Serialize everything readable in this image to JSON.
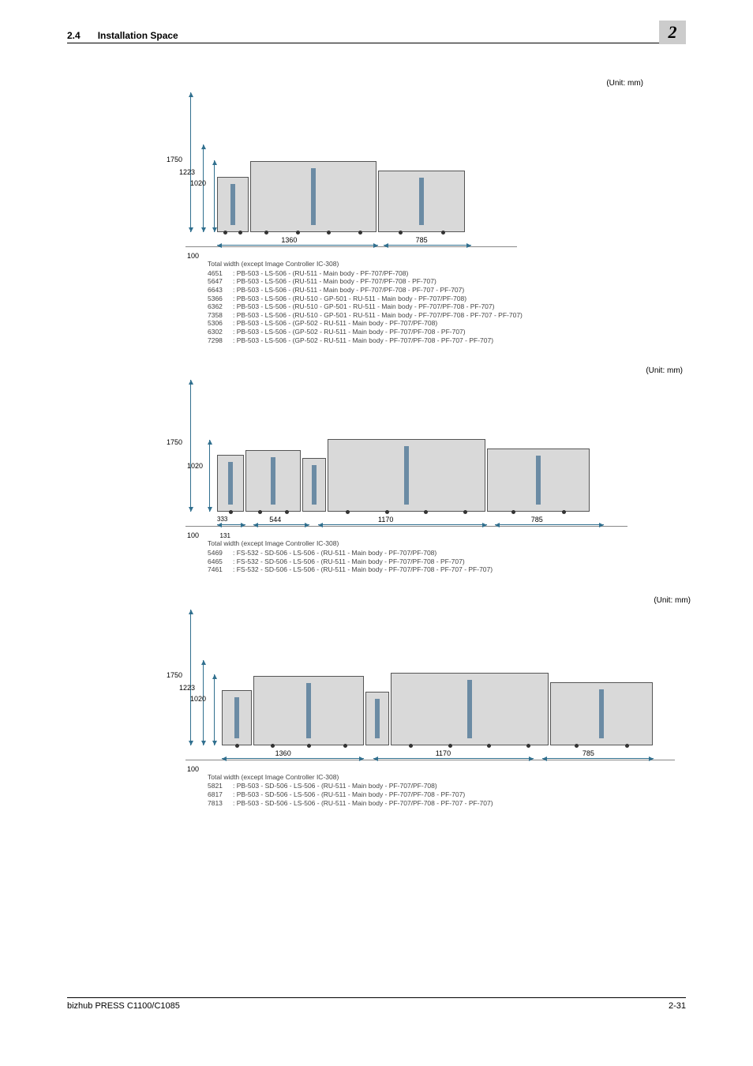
{
  "header": {
    "section_number": "2.4",
    "section_title": "Installation Space",
    "chapter": "2"
  },
  "footer": {
    "product": "bizhub PRESS C1100/C1085",
    "page": "2-31"
  },
  "common": {
    "unit_label": "(Unit: mm)",
    "caption_title": "Total width (except Image Controller IC-308)",
    "label_100": "100"
  },
  "fig1": {
    "v_labels": {
      "outer": "1750",
      "mid": "1223",
      "inner": "1020"
    },
    "h_dims": [
      {
        "label": "1360",
        "left_pct": 8,
        "width_pct": 46
      },
      {
        "label": "785",
        "left_pct": 56,
        "width_pct": 28
      }
    ],
    "rows": [
      {
        "w": "4651",
        "cfg": "PB-503 - LS-506 - (RU-511 - Main body - PF-707/PF-708)"
      },
      {
        "w": "5647",
        "cfg": "PB-503 - LS-506 - (RU-511 - Main body - PF-707/PF-708 - PF-707)"
      },
      {
        "w": "6643",
        "cfg": "PB-503 - LS-506 - (RU-511 - Main body - PF-707/PF-708 - PF-707 - PF-707)"
      },
      {
        "w": "5366",
        "cfg": "PB-503 - LS-506 - (RU-510 - GP-501 - RU-511 - Main body - PF-707/PF-708)"
      },
      {
        "w": "6362",
        "cfg": "PB-503 - LS-506 - (RU-510 - GP-501 - RU-511 - Main body - PF-707/PF-708 - PF-707)"
      },
      {
        "w": "7358",
        "cfg": "PB-503 - LS-506 - (RU-510 - GP-501 - RU-511 - Main body - PF-707/PF-708 - PF-707 - PF-707)"
      },
      {
        "w": "5306",
        "cfg": "PB-503 - LS-506 - (GP-502 - RU-511 - Main body - PF-707/PF-708)"
      },
      {
        "w": "6302",
        "cfg": "PB-503 - LS-506 - (GP-502 - RU-511 - Main body - PF-707/PF-708 - PF-707)"
      },
      {
        "w": "7298",
        "cfg": "PB-503 - LS-506 - (GP-502 - RU-511 - Main body - PF-707/PF-708 - PF-707 - PF-707)"
      }
    ]
  },
  "fig2": {
    "v_labels": {
      "outer": "1750",
      "inner": "1020"
    },
    "extra_h": {
      "a": "333",
      "b": "131",
      "c": "544"
    },
    "h_dims": [
      {
        "label": "333",
        "left_pct": 6,
        "width_pct": 6
      },
      {
        "label": "544",
        "left_pct": 14,
        "width_pct": 14
      },
      {
        "label": "1170",
        "left_pct": 30,
        "width_pct": 38
      },
      {
        "label": "785",
        "left_pct": 70,
        "width_pct": 24
      }
    ],
    "rows": [
      {
        "w": "5469",
        "cfg": "FS-532 - SD-506 - LS-506 - (RU-511 - Main body - PF-707/PF-708)"
      },
      {
        "w": "6465",
        "cfg": "FS-532 - SD-506 - LS-506 - (RU-511 - Main body - PF-707/PF-708 - PF-707)"
      },
      {
        "w": "7461",
        "cfg": "FS-532 - SD-506 - LS-506 - (RU-511 - Main body - PF-707/PF-708 - PF-707 - PF-707)"
      }
    ]
  },
  "fig3": {
    "v_labels": {
      "outer": "1750",
      "mid": "1223",
      "inner": "1020"
    },
    "h_dims": [
      {
        "label": "1360",
        "left_pct": 6,
        "width_pct": 32
      },
      {
        "label": "1170",
        "left_pct": 40,
        "width_pct": 32
      },
      {
        "label": "785",
        "left_pct": 74,
        "width_pct": 22
      }
    ],
    "rows": [
      {
        "w": "5821",
        "cfg": "PB-503 - SD-506 - LS-506 - (RU-511 - Main body - PF-707/PF-708)"
      },
      {
        "w": "6817",
        "cfg": "PB-503 - SD-506 - LS-506 - (RU-511 - Main body - PF-707/PF-708 - PF-707)"
      },
      {
        "w": "7813",
        "cfg": "PB-503 - SD-506 - LS-506 - (RU-511 - Main body - PF-707/PF-708 - PF-707 - PF-707)"
      }
    ]
  },
  "colors": {
    "module_fill": "#d9d9d9",
    "arrow": "#31708f",
    "text": "#000000",
    "badge_bg": "#cccccc"
  }
}
